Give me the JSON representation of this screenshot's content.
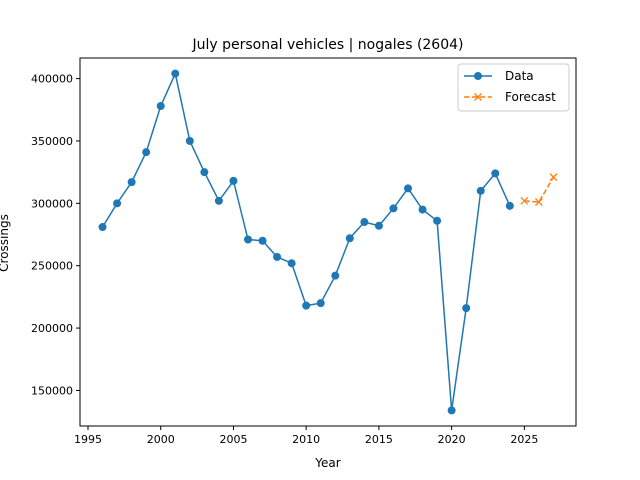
{
  "chart_data": {
    "type": "line",
    "title": "July personal vehicles | nogales (2604)",
    "xlabel": "Year",
    "ylabel": "Crossings",
    "xlim": [
      1994.45,
      2028.55
    ],
    "ylim": [
      121500,
      416500
    ],
    "x_ticks": [
      1995,
      2000,
      2005,
      2010,
      2015,
      2020,
      2025
    ],
    "x_tick_labels": [
      "1995",
      "2000",
      "2005",
      "2010",
      "2015",
      "2020",
      "2025"
    ],
    "y_ticks": [
      150000,
      200000,
      250000,
      300000,
      350000,
      400000
    ],
    "y_tick_labels": [
      "150000",
      "200000",
      "250000",
      "300000",
      "350000",
      "400000"
    ],
    "grid": false,
    "legend_position": "top-right",
    "series": [
      {
        "name": "Data",
        "color": "#1f77b4",
        "marker": "circle",
        "line_style": "solid",
        "x": [
          1996,
          1997,
          1998,
          1999,
          2000,
          2001,
          2002,
          2003,
          2004,
          2005,
          2006,
          2007,
          2008,
          2009,
          2010,
          2011,
          2012,
          2013,
          2014,
          2015,
          2016,
          2017,
          2018,
          2019,
          2020,
          2021,
          2022,
          2023,
          2024
        ],
        "y": [
          281000,
          300000,
          317000,
          341000,
          378000,
          404000,
          350000,
          325000,
          302000,
          318000,
          271000,
          270000,
          257000,
          252000,
          218000,
          220000,
          242000,
          272000,
          285000,
          282000,
          296000,
          312000,
          295000,
          286000,
          134000,
          216000,
          310000,
          324000,
          298000
        ]
      },
      {
        "name": "Forecast",
        "color": "#ff7f0e",
        "marker": "x",
        "line_style": "dashed",
        "x": [
          2025,
          2026,
          2027
        ],
        "y": [
          302000,
          301000,
          321000
        ]
      }
    ]
  }
}
